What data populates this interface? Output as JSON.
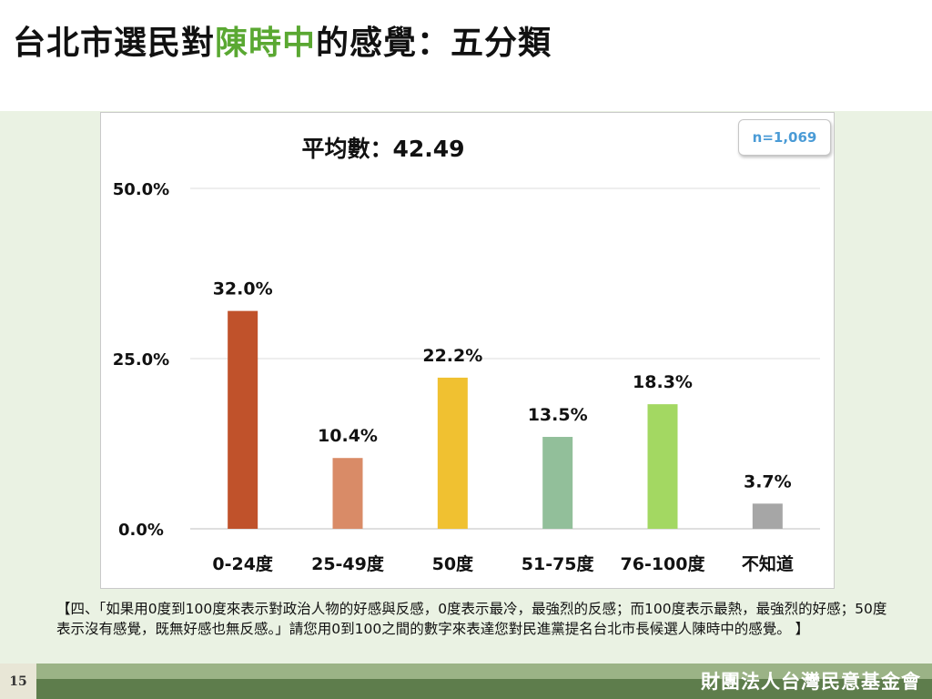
{
  "title": {
    "prefix": "台北市選民對",
    "highlight": "陳時中",
    "suffix": "的感覺：五分類"
  },
  "sample_badge": "n=1,069",
  "note": "【四、「如果用0度到100度來表示對政治人物的好感與反感，0度表示最冷，最強烈的反感；而100度表示最熱，最強烈的好感；50度表示沒有感覺，既無好感也無反感。」請您用0到100之間的數字來表達您對民進黨提名台北市長候選人陳時中的感覺。 】",
  "footer": {
    "page_number": "15",
    "organization": "財團法人台灣民意基金會"
  },
  "chart_data": {
    "type": "bar",
    "title": "平均數：42.49",
    "categories": [
      "0-24度",
      "25-49度",
      "50度",
      "51-75度",
      "76-100度",
      "不知道"
    ],
    "values": [
      32.0,
      10.4,
      22.2,
      13.5,
      18.3,
      3.7
    ],
    "value_labels": [
      "32.0%",
      "10.4%",
      "22.2%",
      "13.5%",
      "18.3%",
      "3.7%"
    ],
    "colors": [
      "#c0522b",
      "#d98b67",
      "#f0c131",
      "#92bf9a",
      "#a3d862",
      "#a6a6a6"
    ],
    "yticks": [
      0,
      25,
      50
    ],
    "ytick_labels": [
      "0.0%",
      "25.0%",
      "50.0%"
    ],
    "ylim": [
      0,
      50
    ],
    "grid": true,
    "legend": false
  }
}
